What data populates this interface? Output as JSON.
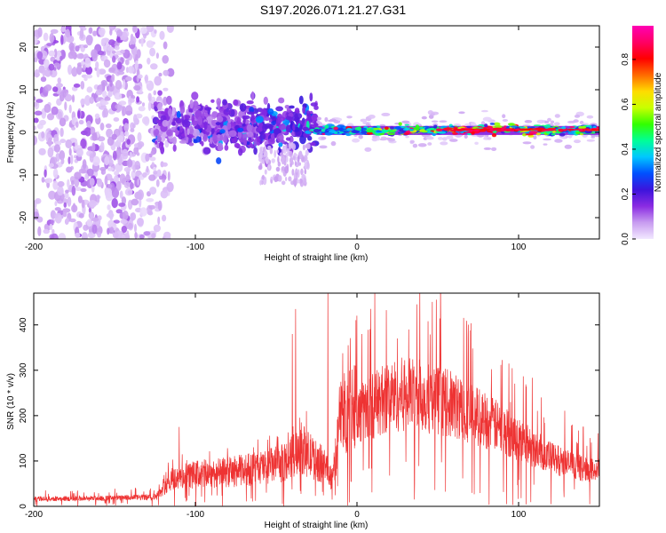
{
  "title": "S197.2026.071.21.27.G31",
  "top_chart": {
    "xlabel": "Height of straight line (km)",
    "ylabel": "Frequency (Hz)"
  },
  "colorbar": {
    "label": "Normalized spectral amplitude",
    "colors": [
      "#f2e8ff",
      "#c89cf0",
      "#8a2be2",
      "#3c14dc",
      "#0050ff",
      "#00c8ff",
      "#00ff96",
      "#32ff00",
      "#c8ff00",
      "#ffdc00",
      "#ff6a00",
      "#ff0000",
      "#ff0064",
      "#ff00b4"
    ]
  },
  "bottom_chart": {
    "xlabel": "Height of straight line (km)",
    "ylabel": "SNR (10 * v/v)",
    "line_color": "#ee3333"
  },
  "chart_data": [
    {
      "type": "heatmap",
      "title": "S197.2026.071.21.27.G31",
      "xlabel": "Height of straight line (km)",
      "ylabel": "Frequency (Hz)",
      "xlim": [
        -200,
        150
      ],
      "ylim": [
        -25,
        25
      ],
      "xticks": [
        -200,
        -100,
        0,
        100
      ],
      "yticks": [
        -20,
        -10,
        0,
        10,
        20
      ],
      "colorbar": {
        "label": "Normalized spectral amplitude",
        "range": [
          0,
          0.95
        ],
        "ticks": [
          0.0,
          0.2,
          0.4,
          0.6,
          0.8
        ]
      },
      "regions": [
        {
          "x_range": [
            -200,
            -120
          ],
          "freq_range": [
            -25,
            25
          ],
          "amplitude": "low (0.0-0.1), scattered noise"
        },
        {
          "x_range": [
            -120,
            -30
          ],
          "freq_range": [
            -5,
            8
          ],
          "amplitude": "0.05-0.3, patchy"
        },
        {
          "x_range": [
            -30,
            150
          ],
          "freq_range": [
            -1,
            2
          ],
          "amplitude": "0.2-0.95, narrow band near 0-1 Hz"
        }
      ]
    },
    {
      "type": "line",
      "xlabel": "Height of straight line (km)",
      "ylabel": "SNR (10 * v/v)",
      "xlim": [
        -200,
        150
      ],
      "ylim": [
        0,
        470
      ],
      "xticks": [
        -200,
        -100,
        0,
        100
      ],
      "yticks": [
        0,
        100,
        200,
        300,
        400
      ],
      "envelope_x": [
        -200,
        -150,
        -125,
        -115,
        -100,
        -80,
        -60,
        -45,
        -40,
        -35,
        -30,
        -25,
        -20,
        -15,
        -10,
        -5,
        0,
        10,
        20,
        30,
        40,
        60,
        80,
        100,
        120,
        140,
        150
      ],
      "envelope_y": [
        20,
        22,
        25,
        60,
        70,
        75,
        85,
        95,
        110,
        130,
        115,
        100,
        90,
        60,
        200,
        215,
        240,
        270,
        295,
        300,
        295,
        270,
        230,
        180,
        130,
        100,
        95
      ],
      "spikes": [
        {
          "x": -18,
          "y": 470
        },
        {
          "x": -38,
          "y": 435
        },
        {
          "x": -40,
          "y": 380
        },
        {
          "x": 3,
          "y": 380
        },
        {
          "x": 32,
          "y": 390
        },
        {
          "x": 25,
          "y": 370
        },
        {
          "x": -110,
          "y": 175
        },
        {
          "x": 95,
          "y": 230
        },
        {
          "x": 140,
          "y": 175
        }
      ]
    }
  ]
}
